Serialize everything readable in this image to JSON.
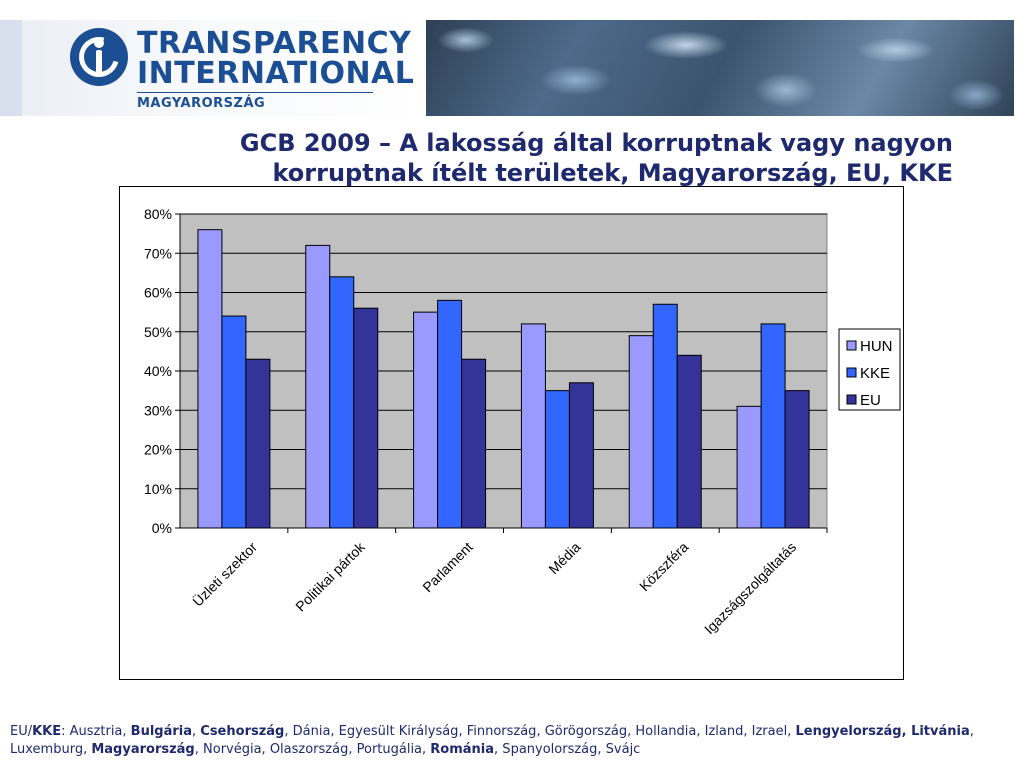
{
  "header": {
    "logo_line1": "TRANSPARENCY",
    "logo_line2": "INTERNATIONAL",
    "logo_sub": "MAGYARORSZÁG"
  },
  "title_lines": [
    "GCB 2009 – A lakosság által korruptnak vagy nagyon",
    "korruptnak ítélt területek, Magyarország, EU, KKE"
  ],
  "chart_data": {
    "type": "bar",
    "categories": [
      "Üzleti szektor",
      "Politikai pártok",
      "Parlament",
      "Média",
      "Közszféra",
      "Igazságszolgáltatás"
    ],
    "series": [
      {
        "name": "HUN",
        "values": [
          76,
          72,
          55,
          52,
          49,
          31
        ],
        "color": "#9999ff"
      },
      {
        "name": "KKE",
        "values": [
          54,
          64,
          58,
          35,
          57,
          52
        ],
        "color": "#3366ff"
      },
      {
        "name": "EU",
        "values": [
          43,
          56,
          43,
          37,
          44,
          35
        ],
        "color": "#333399"
      }
    ],
    "ylim": [
      0,
      80
    ],
    "yticks": [
      "0%",
      "10%",
      "20%",
      "30%",
      "40%",
      "50%",
      "60%",
      "70%",
      "80%"
    ],
    "grid": true,
    "plot_background": "#c0c0c0",
    "legend_position": "right"
  },
  "footer": {
    "segments": [
      {
        "text": "EU/",
        "bold": false
      },
      {
        "text": "KKE",
        "bold": true
      },
      {
        "text": ": Ausztria, ",
        "bold": false
      },
      {
        "text": "Bulgária",
        "bold": true
      },
      {
        "text": ", ",
        "bold": false
      },
      {
        "text": "Csehország",
        "bold": true
      },
      {
        "text": ", Dánia, Egyesült Királyság, Finnország, Görögország, Hollandia, Izland, Izrael, ",
        "bold": false
      },
      {
        "text": "Lengyelország, Litvánia",
        "bold": true
      },
      {
        "text": ", Luxemburg, ",
        "bold": false
      },
      {
        "text": "Magyarország",
        "bold": true
      },
      {
        "text": ", Norvégia, Olaszország,  Portugália, ",
        "bold": false
      },
      {
        "text": "Románia",
        "bold": true
      },
      {
        "text": ", Spanyolország, Svájc",
        "bold": false
      }
    ]
  }
}
